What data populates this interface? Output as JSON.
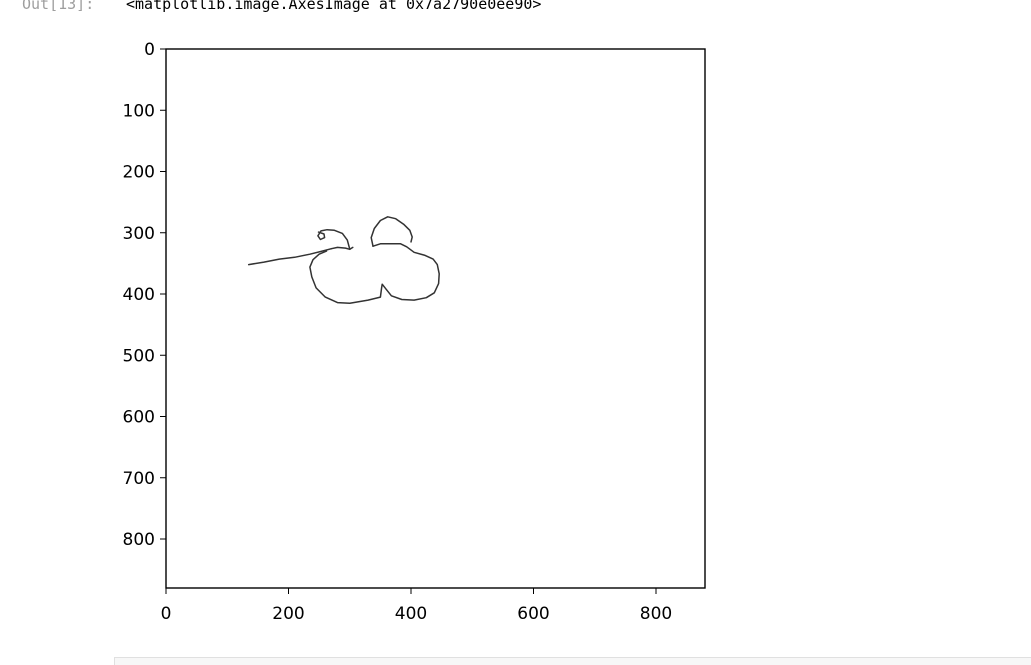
{
  "output": {
    "prompt": "Out[13]:",
    "repr": "<matplotlib.image.AxesImage at 0x7a2790e0ee90>"
  },
  "chart_data": {
    "type": "image",
    "title": "",
    "xlabel": "",
    "ylabel": "",
    "xlim": [
      0,
      880
    ],
    "ylim": [
      880,
      0
    ],
    "xticks": [
      "0",
      "200",
      "400",
      "600",
      "800"
    ],
    "yticks": [
      "0",
      "100",
      "200",
      "300",
      "400",
      "500",
      "600",
      "700",
      "800"
    ],
    "stroke_color": "#333333",
    "strokes": [
      [
        [
          135,
          352
        ],
        [
          160,
          348
        ],
        [
          185,
          343
        ],
        [
          210,
          340
        ],
        [
          235,
          335
        ],
        [
          255,
          330
        ],
        [
          270,
          326
        ]
      ],
      [
        [
          270,
          326
        ],
        [
          280,
          324
        ],
        [
          293,
          325
        ],
        [
          300,
          327
        ],
        [
          305,
          324
        ]
      ],
      [
        [
          300,
          327
        ],
        [
          296,
          312
        ],
        [
          288,
          301
        ],
        [
          275,
          296
        ],
        [
          263,
          295
        ],
        [
          253,
          297
        ],
        [
          248,
          305
        ],
        [
          252,
          311
        ],
        [
          259,
          308
        ],
        [
          258,
          302
        ],
        [
          249,
          299
        ]
      ],
      [
        [
          262,
          330
        ],
        [
          250,
          335
        ],
        [
          240,
          344
        ],
        [
          235,
          356
        ],
        [
          238,
          372
        ],
        [
          245,
          390
        ],
        [
          260,
          405
        ],
        [
          280,
          414
        ],
        [
          300,
          415
        ],
        [
          330,
          410
        ],
        [
          350,
          405
        ],
        [
          352,
          390
        ],
        [
          353,
          384
        ],
        [
          360,
          393
        ],
        [
          368,
          403
        ],
        [
          385,
          409
        ],
        [
          405,
          410
        ],
        [
          425,
          406
        ],
        [
          438,
          398
        ],
        [
          445,
          383
        ],
        [
          446,
          367
        ],
        [
          443,
          352
        ],
        [
          436,
          343
        ],
        [
          423,
          337
        ],
        [
          405,
          332
        ],
        [
          393,
          323
        ],
        [
          383,
          318
        ],
        [
          370,
          318
        ],
        [
          350,
          318
        ],
        [
          338,
          322
        ]
      ],
      [
        [
          338,
          322
        ],
        [
          335,
          308
        ],
        [
          340,
          293
        ],
        [
          350,
          280
        ],
        [
          362,
          274
        ],
        [
          375,
          277
        ],
        [
          388,
          286
        ],
        [
          398,
          296
        ],
        [
          402,
          307
        ],
        [
          400,
          315
        ]
      ]
    ]
  }
}
